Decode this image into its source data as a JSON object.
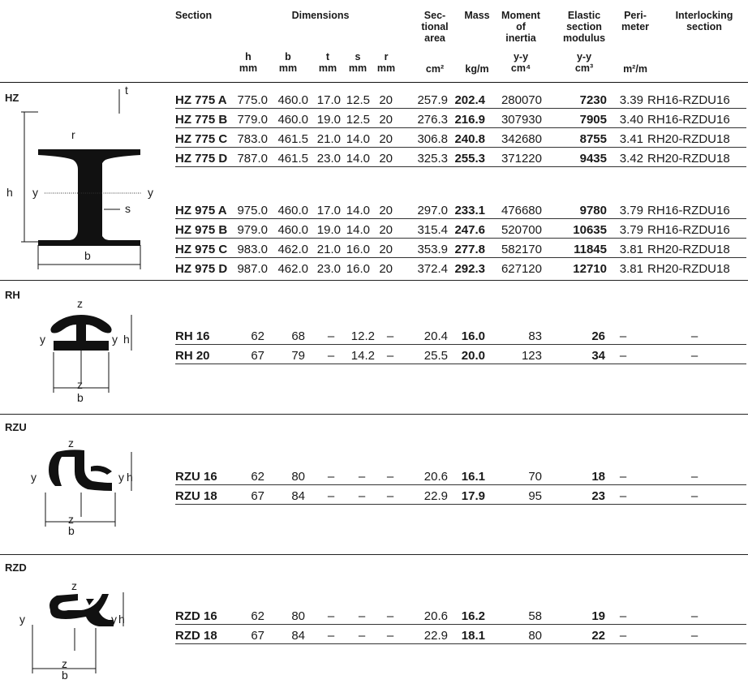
{
  "headers": {
    "section": "Section",
    "dimensions": "Dimensions",
    "sectional_area": [
      "Sec-",
      "tional",
      "area"
    ],
    "mass": "Mass",
    "moment": [
      "Moment",
      "of",
      "inertia"
    ],
    "elastic": [
      "Elastic",
      "section",
      "modulus"
    ],
    "perimeter": [
      "Peri-",
      "meter"
    ],
    "interlocking": [
      "Interlocking",
      "section"
    ]
  },
  "units": {
    "h": [
      "h",
      "mm"
    ],
    "b": [
      "b",
      "mm"
    ],
    "t": [
      "t",
      "mm"
    ],
    "s": [
      "s",
      "mm"
    ],
    "r": [
      "r",
      "mm"
    ],
    "area": "cm²",
    "mass": "kg/m",
    "moment": [
      "y-y",
      "cm⁴"
    ],
    "modulus": [
      "y-y",
      "cm³"
    ],
    "perimeter": "m²/m"
  },
  "groups": {
    "hz": {
      "label": "HZ",
      "diagram_labels": {
        "t": "t",
        "r": "r",
        "h": "h",
        "y_left": "y",
        "y_right": "y",
        "s": "s",
        "b": "b"
      },
      "rows": [
        [
          "HZ 775 A",
          "775.0",
          "460.0",
          "17.0",
          "12.5",
          "20",
          "257.9",
          "202.4",
          "280070",
          "7230",
          "3.39",
          "RH16-RZDU16"
        ],
        [
          "HZ 775 B",
          "779.0",
          "460.0",
          "19.0",
          "12.5",
          "20",
          "276.3",
          "216.9",
          "307930",
          "7905",
          "3.40",
          "RH16-RZDU16"
        ],
        [
          "HZ 775 C",
          "783.0",
          "461.5",
          "21.0",
          "14.0",
          "20",
          "306.8",
          "240.8",
          "342680",
          "8755",
          "3.41",
          "RH20-RZDU18"
        ],
        [
          "HZ 775 D",
          "787.0",
          "461.5",
          "23.0",
          "14.0",
          "20",
          "325.3",
          "255.3",
          "371220",
          "9435",
          "3.42",
          "RH20-RZDU18"
        ],
        [
          "HZ 975 A",
          "975.0",
          "460.0",
          "17.0",
          "14.0",
          "20",
          "297.0",
          "233.1",
          "476680",
          "9780",
          "3.79",
          "RH16-RZDU16"
        ],
        [
          "HZ 975 B",
          "979.0",
          "460.0",
          "19.0",
          "14.0",
          "20",
          "315.4",
          "247.6",
          "520700",
          "10635",
          "3.79",
          "RH16-RZDU16"
        ],
        [
          "HZ 975 C",
          "983.0",
          "462.0",
          "21.0",
          "16.0",
          "20",
          "353.9",
          "277.8",
          "582170",
          "11845",
          "3.81",
          "RH20-RZDU18"
        ],
        [
          "HZ 975 D",
          "987.0",
          "462.0",
          "23.0",
          "16.0",
          "20",
          "372.4",
          "292.3",
          "627120",
          "12710",
          "3.81",
          "RH20-RZDU18"
        ]
      ]
    },
    "rh": {
      "label": "RH",
      "diagram_labels": {
        "z_top": "z",
        "y_left": "y",
        "y_right": "y",
        "h": "h",
        "z_bottom": "z",
        "b": "b"
      },
      "rows": [
        [
          "RH 16",
          "62",
          "68",
          "–",
          "12.2",
          "–",
          "20.4",
          "16.0",
          "83",
          "26",
          "–",
          "–"
        ],
        [
          "RH 20",
          "67",
          "79",
          "–",
          "14.2",
          "–",
          "25.5",
          "20.0",
          "123",
          "34",
          "–",
          "–"
        ]
      ]
    },
    "rzu": {
      "label": "RZU",
      "diagram_labels": {
        "z_top": "z",
        "y_left": "y",
        "y_right": "y",
        "h": "h",
        "z_bottom": "z",
        "b": "b"
      },
      "rows": [
        [
          "RZU 16",
          "62",
          "80",
          "–",
          "–",
          "–",
          "20.6",
          "16.1",
          "70",
          "18",
          "–",
          "–"
        ],
        [
          "RZU 18",
          "67",
          "84",
          "–",
          "–",
          "–",
          "22.9",
          "17.9",
          "95",
          "23",
          "–",
          "–"
        ]
      ]
    },
    "rzd": {
      "label": "RZD",
      "diagram_labels": {
        "z_top": "z",
        "y_left": "y",
        "y_right": "y",
        "h": "h",
        "z_bottom": "z",
        "b": "b"
      },
      "rows": [
        [
          "RZD 16",
          "62",
          "80",
          "–",
          "–",
          "–",
          "20.6",
          "16.2",
          "58",
          "19",
          "–",
          "–"
        ],
        [
          "RZD 18",
          "67",
          "84",
          "–",
          "–",
          "–",
          "22.9",
          "18.1",
          "80",
          "22",
          "–",
          "–"
        ]
      ]
    }
  }
}
